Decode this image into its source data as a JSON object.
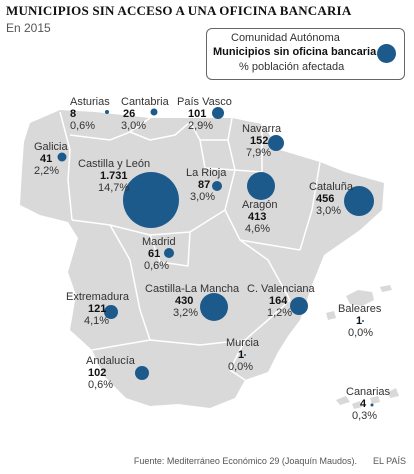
{
  "title": "MUNICIPIOS SIN ACCESO A UNA OFICINA BANCARIA",
  "subtitle": "En 2015",
  "legend": {
    "line1": "Comunidad Autónoma",
    "line2": "Municipios sin oficina bancaria",
    "line3": "% población afectada"
  },
  "colors": {
    "bubble": "#1d5a8c",
    "land": "#d9d9d9",
    "border": "#ffffff"
  },
  "regions": [
    {
      "name": "Asturias",
      "value": "8",
      "pct": "0,6%"
    },
    {
      "name": "Cantabria",
      "value": "26",
      "pct": "3,0%"
    },
    {
      "name": "País Vasco",
      "value": "101",
      "pct": "2,9%"
    },
    {
      "name": "Navarra",
      "value": "152",
      "pct": "7,9%"
    },
    {
      "name": "Galicia",
      "value": "41",
      "pct": "2,2%"
    },
    {
      "name": "Castilla y León",
      "value": "1.731",
      "pct": "14,7%"
    },
    {
      "name": "La Rioja",
      "value": "87",
      "pct": "3,0%"
    },
    {
      "name": "Aragón",
      "value": "413",
      "pct": "4,6%"
    },
    {
      "name": "Cataluña",
      "value": "456",
      "pct": "3,0%"
    },
    {
      "name": "Madrid",
      "value": "61",
      "pct": "0,6%"
    },
    {
      "name": "Extremadura",
      "value": "121",
      "pct": "4,1%"
    },
    {
      "name": "Castilla-La Mancha",
      "value": "430",
      "pct": "3,2%"
    },
    {
      "name": "C. Valenciana",
      "value": "164",
      "pct": "1,2%"
    },
    {
      "name": "Baleares",
      "value": "1",
      "pct": "0,0%"
    },
    {
      "name": "Murcia",
      "value": "1",
      "pct": "0,0%"
    },
    {
      "name": "Andalucía",
      "value": "102",
      "pct": "0,6%"
    },
    {
      "name": "Canarias",
      "value": "4",
      "pct": "0,3%"
    }
  ],
  "source": "Fuente: Mediterráneo Económico 29 (Joaquín Maudos).",
  "publisher": "EL PAÍS"
}
